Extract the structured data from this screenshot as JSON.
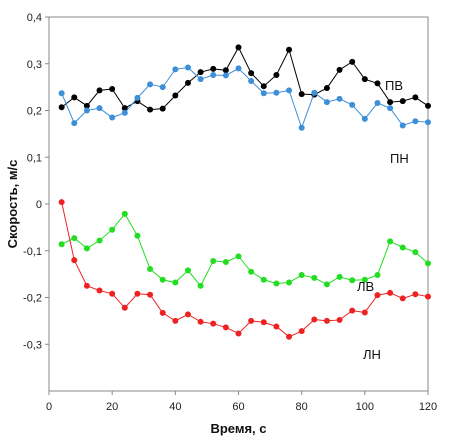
{
  "chart_data": {
    "type": "line",
    "xlabel": "Время, с",
    "ylabel": "Скорость, м/с",
    "xlim": [
      0,
      120
    ],
    "ylim": [
      -0.4,
      0.4
    ],
    "x_ticks": [
      "0",
      "20",
      "40",
      "60",
      "80",
      "100",
      "120"
    ],
    "y_ticks": [
      "-0,3",
      "-0,2",
      "-0,1",
      "0",
      "0,1",
      "0,2",
      "0,3",
      "0,4"
    ],
    "grid": false,
    "legend": "none",
    "x": [
      4,
      8,
      12,
      16,
      20,
      24,
      28,
      32,
      36,
      40,
      44,
      48,
      52,
      56,
      60,
      64,
      68,
      72,
      76,
      80,
      84,
      88,
      92,
      96,
      100,
      104,
      108,
      112,
      116,
      120
    ],
    "series": [
      {
        "name": "ПВ",
        "color": "#000000",
        "values": [
          0.207,
          0.228,
          0.21,
          0.243,
          0.246,
          0.205,
          0.22,
          0.202,
          0.204,
          0.232,
          0.259,
          0.282,
          0.289,
          0.286,
          0.335,
          0.28,
          0.252,
          0.276,
          0.33,
          0.235,
          0.234,
          0.248,
          0.287,
          0.304,
          0.267,
          0.258,
          0.218,
          0.22,
          0.228,
          0.21
        ]
      },
      {
        "name": "ПН",
        "color": "#3d8fd8",
        "values": [
          0.237,
          0.173,
          0.2,
          0.205,
          0.185,
          0.195,
          0.227,
          0.256,
          0.25,
          0.288,
          0.292,
          0.267,
          0.276,
          0.275,
          0.29,
          0.263,
          0.237,
          0.238,
          0.243,
          0.163,
          0.238,
          0.218,
          0.225,
          0.212,
          0.182,
          0.216,
          0.205,
          0.168,
          0.177,
          0.175
        ]
      },
      {
        "name": "ЛВ",
        "color": "#22dd22",
        "values": [
          -0.086,
          -0.073,
          -0.095,
          -0.078,
          -0.055,
          -0.021,
          -0.068,
          -0.139,
          -0.162,
          -0.168,
          -0.142,
          -0.175,
          -0.122,
          -0.124,
          -0.112,
          -0.145,
          -0.162,
          -0.17,
          -0.168,
          -0.152,
          -0.158,
          -0.172,
          -0.156,
          -0.163,
          -0.162,
          -0.152,
          -0.08,
          -0.093,
          -0.103,
          -0.127
        ]
      },
      {
        "name": "ЛН",
        "color": "#ee2222",
        "values": [
          0.004,
          -0.12,
          -0.175,
          -0.185,
          -0.192,
          -0.222,
          -0.192,
          -0.194,
          -0.233,
          -0.25,
          -0.236,
          -0.252,
          -0.256,
          -0.264,
          -0.277,
          -0.25,
          -0.253,
          -0.262,
          -0.284,
          -0.272,
          -0.247,
          -0.25,
          -0.248,
          -0.228,
          -0.232,
          -0.195,
          -0.19,
          -0.202,
          -0.193,
          -0.198
        ]
      }
    ]
  }
}
